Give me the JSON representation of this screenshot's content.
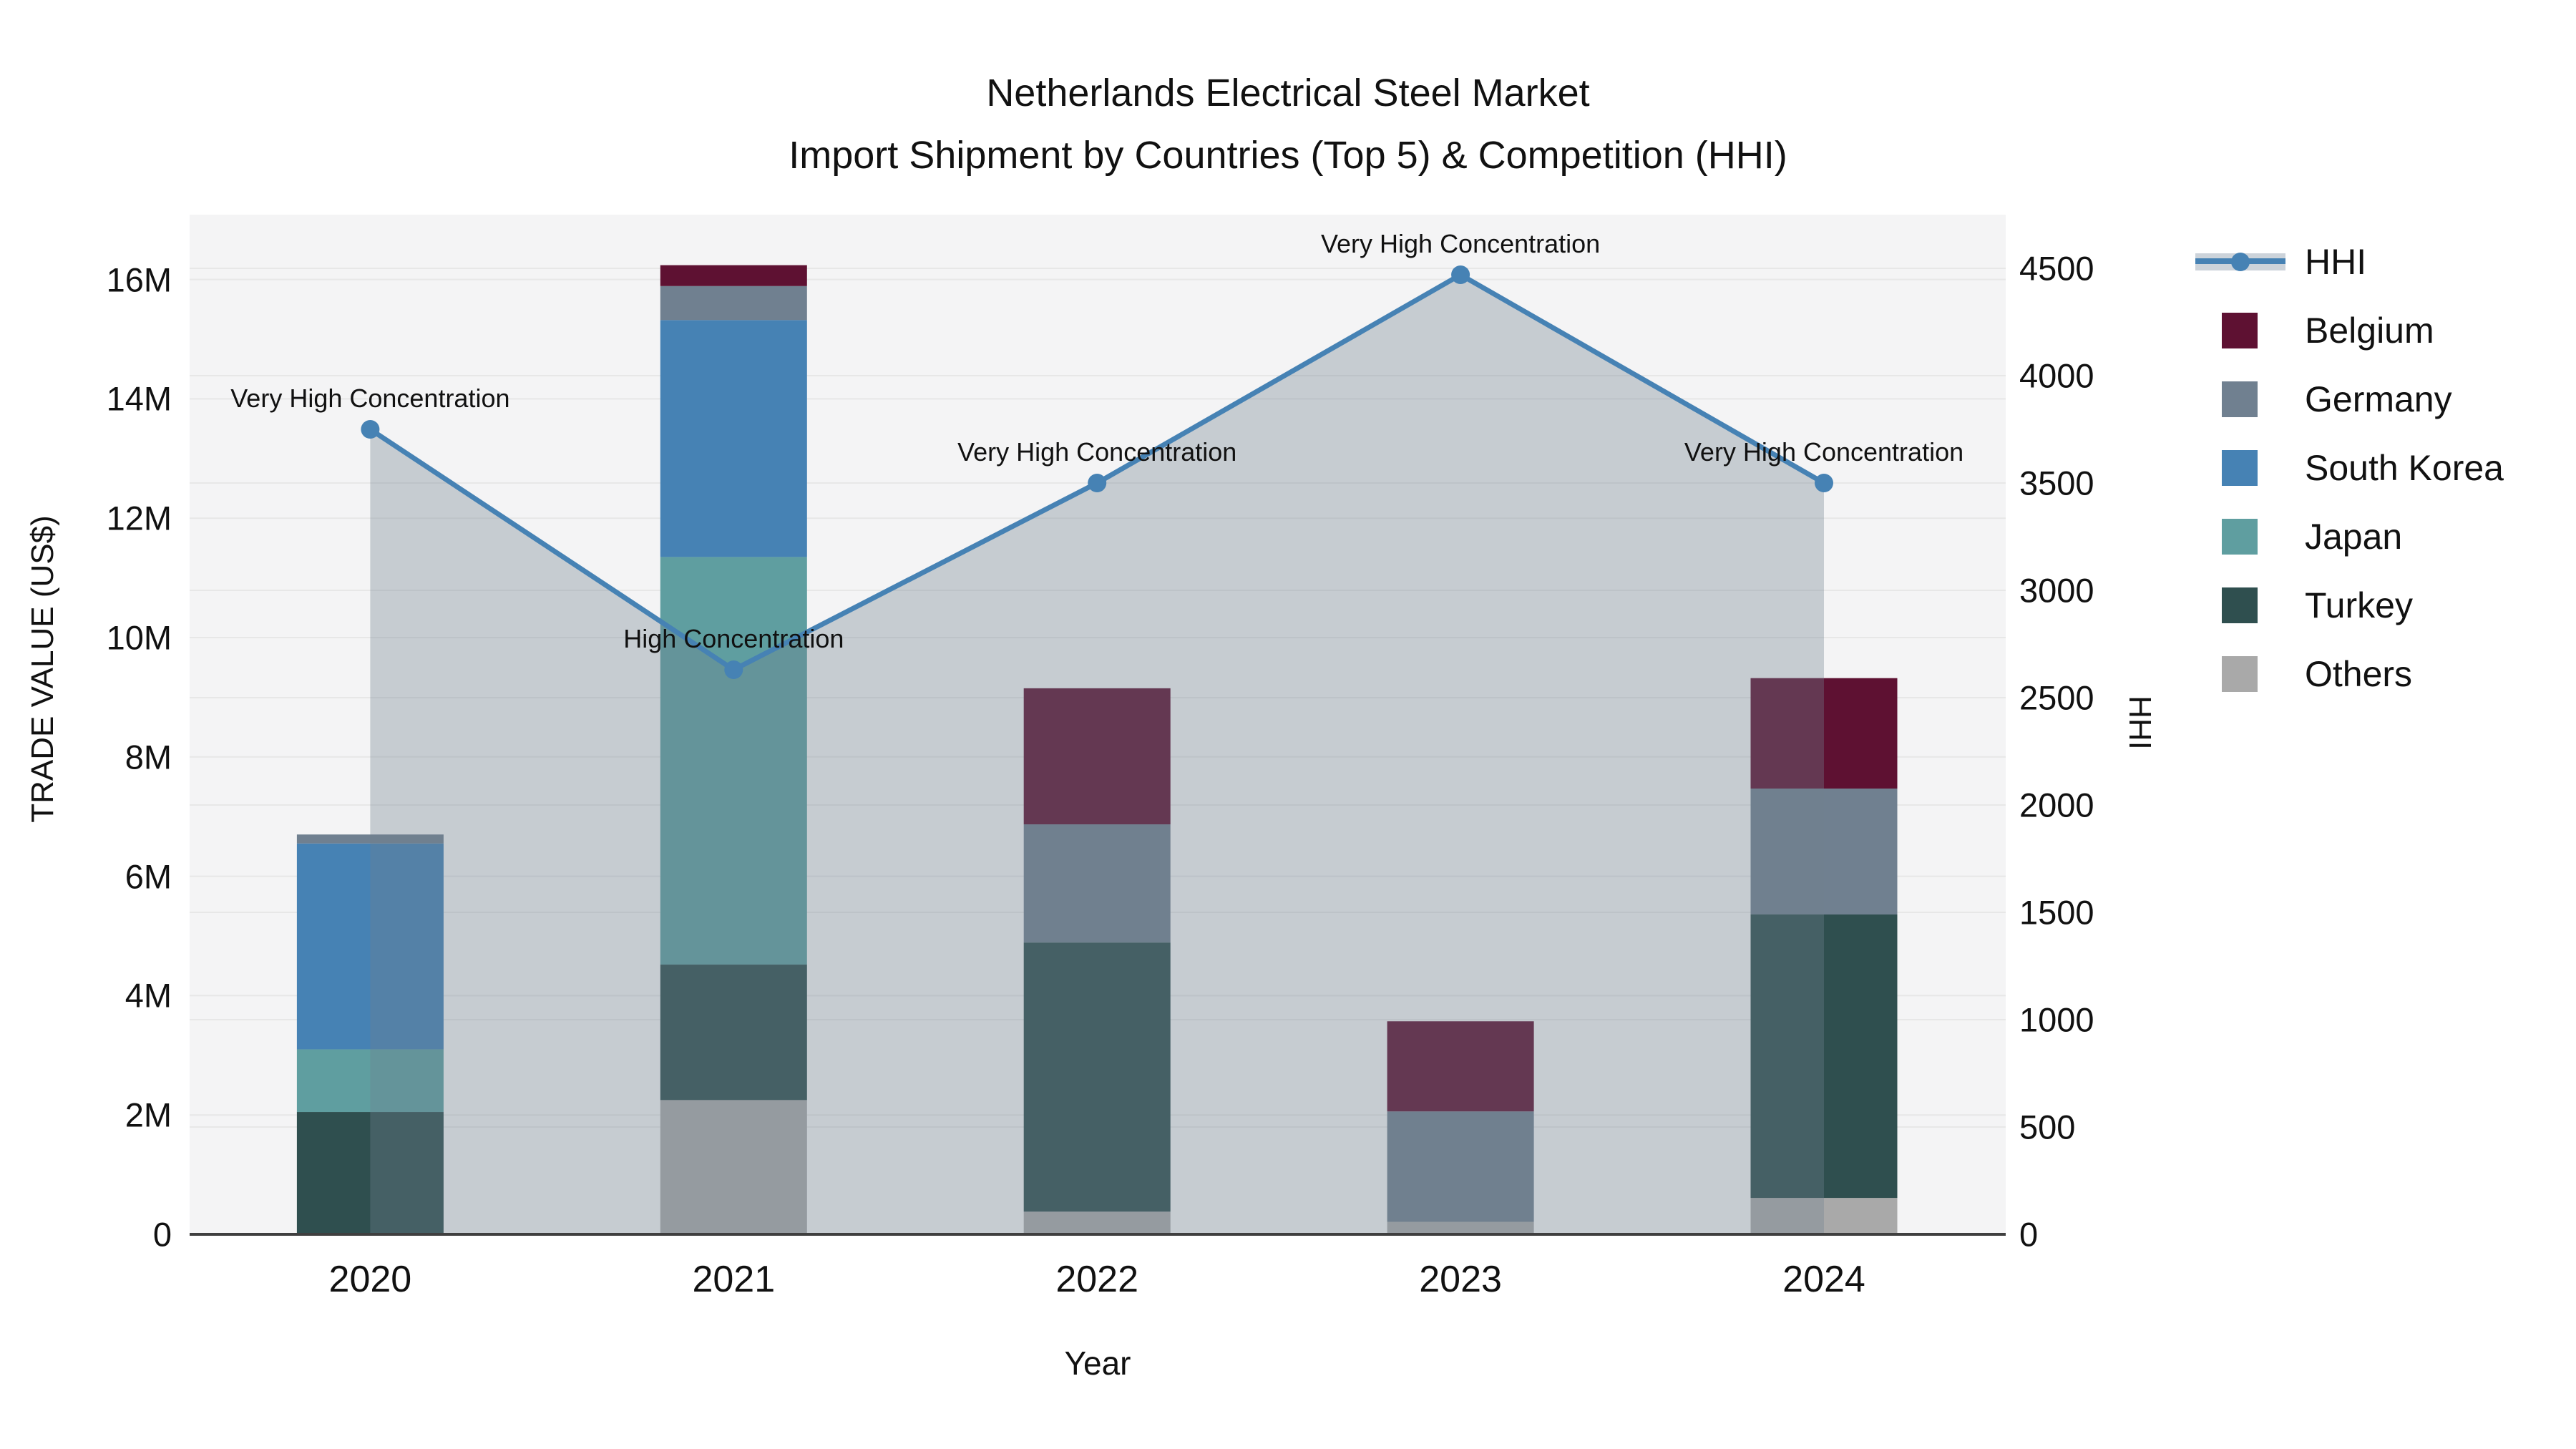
{
  "title": {
    "line1": "Netherlands Electrical Steel Market",
    "line2": "Import Shipment by Countries (Top 5) & Competition (HHI)"
  },
  "axes": {
    "left": {
      "label": "TRADE VALUE (US$)",
      "tick_labels": [
        "0",
        "2M",
        "4M",
        "6M",
        "8M",
        "10M",
        "12M",
        "14M",
        "16M"
      ],
      "tick_values_musd": [
        0,
        2,
        4,
        6,
        8,
        10,
        12,
        14,
        16
      ],
      "ylim_musd": [
        0,
        17.09
      ]
    },
    "right": {
      "label": "HHI",
      "tick_labels": [
        "0",
        "500",
        "1000",
        "1500",
        "2000",
        "2500",
        "3000",
        "3500",
        "4000",
        "4500"
      ],
      "tick_values": [
        0,
        500,
        1000,
        1500,
        2000,
        2500,
        3000,
        3500,
        4000,
        4500
      ],
      "ylim": [
        0,
        4750
      ]
    },
    "x": {
      "label": "Year",
      "categories": [
        "2020",
        "2021",
        "2022",
        "2023",
        "2024"
      ]
    }
  },
  "legend": {
    "items": [
      {
        "label": "HHI",
        "type": "line",
        "color": "#4682b4"
      },
      {
        "label": "Belgium",
        "type": "bar",
        "color": "#5e1132"
      },
      {
        "label": "Germany",
        "type": "bar",
        "color": "#708090"
      },
      {
        "label": "South Korea",
        "type": "bar",
        "color": "#4682b4"
      },
      {
        "label": "Japan",
        "type": "bar",
        "color": "#5f9ea0"
      },
      {
        "label": "Turkey",
        "type": "bar",
        "color": "#2f4f4f"
      },
      {
        "label": "Others",
        "type": "bar",
        "color": "#a9a9a9"
      }
    ]
  },
  "chart_data": {
    "type": "composite",
    "bar_type": "stacked",
    "categories": [
      "2020",
      "2021",
      "2022",
      "2023",
      "2024"
    ],
    "stack_order_bottom_to_top": [
      "Others",
      "Turkey",
      "Japan",
      "South Korea",
      "Germany",
      "Belgium"
    ],
    "value_unit": "millions US$",
    "series": [
      {
        "name": "Belgium",
        "color": "#5e1132",
        "values": [
          0,
          0.35,
          2.28,
          1.51,
          1.85
        ]
      },
      {
        "name": "Germany",
        "color": "#708090",
        "values": [
          0.15,
          0.57,
          1.98,
          1.85,
          2.11
        ]
      },
      {
        "name": "South Korea",
        "color": "#4682b4",
        "values": [
          3.45,
          3.97,
          0,
          0,
          0
        ]
      },
      {
        "name": "Japan",
        "color": "#5f9ea0",
        "values": [
          1.05,
          6.83,
          0,
          0,
          0
        ]
      },
      {
        "name": "Turkey",
        "color": "#2f4f4f",
        "values": [
          2.05,
          2.27,
          4.51,
          0,
          4.75
        ]
      },
      {
        "name": "Others",
        "color": "#a9a9a9",
        "values": [
          0,
          2.25,
          0.38,
          0.21,
          0.61
        ]
      }
    ],
    "line_series": {
      "name": "HHI",
      "color": "#4682b4",
      "values": [
        3750,
        2630,
        3500,
        4470,
        3500
      ],
      "area_fill": "rgba(112,128,144,0.35)",
      "axis": "right"
    },
    "annotations": [
      {
        "category": "2020",
        "text": "Very High Concentration"
      },
      {
        "category": "2021",
        "text": "High Concentration"
      },
      {
        "category": "2022",
        "text": "Very High Concentration"
      },
      {
        "category": "2023",
        "text": "Very High Concentration"
      },
      {
        "category": "2024",
        "text": "Very High Concentration"
      }
    ],
    "grid": true,
    "legend_position": "right-outside"
  },
  "colors": {
    "background": "#ffffff",
    "plot_background": "#f4f4f5",
    "grid": "#e7e7e7",
    "axis_line": "#3f3f3f",
    "text": "#111111"
  }
}
